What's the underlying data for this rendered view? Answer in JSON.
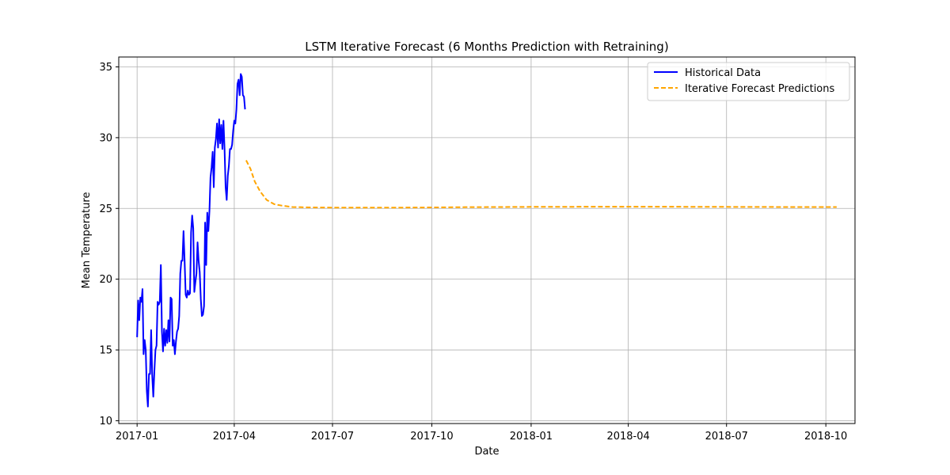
{
  "chart_data": {
    "type": "line",
    "title": "LSTM Iterative Forecast (6 Months Prediction with Retraining)",
    "xlabel": "Date",
    "ylabel": "Mean Temperature",
    "x_axis_type": "date",
    "xlim": [
      "2016-12-15",
      "2018-10-28"
    ],
    "ylim": [
      9.8,
      35.7
    ],
    "grid": true,
    "legend_position": "top-right",
    "x_ticks": [
      "2017-01",
      "2017-04",
      "2017-07",
      "2017-10",
      "2018-01",
      "2018-04",
      "2018-07",
      "2018-10"
    ],
    "y_ticks": [
      10,
      15,
      20,
      25,
      30,
      35
    ],
    "series": [
      {
        "name": "Historical Data",
        "color": "#0000ff",
        "style": "solid",
        "points": [
          [
            "2017-01-01",
            15.9
          ],
          [
            "2017-01-02",
            18.5
          ],
          [
            "2017-01-03",
            17.1
          ],
          [
            "2017-01-04",
            18.7
          ],
          [
            "2017-01-05",
            18.4
          ],
          [
            "2017-01-06",
            19.3
          ],
          [
            "2017-01-07",
            14.7
          ],
          [
            "2017-01-08",
            15.7
          ],
          [
            "2017-01-09",
            15.0
          ],
          [
            "2017-01-10",
            12.1
          ],
          [
            "2017-01-11",
            11.0
          ],
          [
            "2017-01-12",
            13.3
          ],
          [
            "2017-01-13",
            13.3
          ],
          [
            "2017-01-14",
            16.4
          ],
          [
            "2017-01-15",
            13.2
          ],
          [
            "2017-01-16",
            11.7
          ],
          [
            "2017-01-17",
            13.5
          ],
          [
            "2017-01-18",
            15.0
          ],
          [
            "2017-01-19",
            15.3
          ],
          [
            "2017-01-20",
            18.4
          ],
          [
            "2017-01-21",
            18.2
          ],
          [
            "2017-01-22",
            18.4
          ],
          [
            "2017-01-23",
            21.0
          ],
          [
            "2017-01-24",
            16.3
          ],
          [
            "2017-01-25",
            14.9
          ],
          [
            "2017-01-26",
            16.5
          ],
          [
            "2017-01-27",
            15.3
          ],
          [
            "2017-01-28",
            16.4
          ],
          [
            "2017-01-29",
            15.5
          ],
          [
            "2017-01-30",
            17.1
          ],
          [
            "2017-01-31",
            15.6
          ],
          [
            "2017-02-01",
            18.7
          ],
          [
            "2017-02-02",
            18.6
          ],
          [
            "2017-02-03",
            15.3
          ],
          [
            "2017-02-04",
            15.7
          ],
          [
            "2017-02-05",
            14.7
          ],
          [
            "2017-02-06",
            15.6
          ],
          [
            "2017-02-07",
            16.3
          ],
          [
            "2017-02-08",
            16.5
          ],
          [
            "2017-02-09",
            17.4
          ],
          [
            "2017-02-10",
            20.4
          ],
          [
            "2017-02-11",
            21.3
          ],
          [
            "2017-02-12",
            21.3
          ],
          [
            "2017-02-13",
            23.4
          ],
          [
            "2017-02-14",
            21.3
          ],
          [
            "2017-02-15",
            18.9
          ],
          [
            "2017-02-16",
            18.7
          ],
          [
            "2017-02-17",
            19.2
          ],
          [
            "2017-02-18",
            18.9
          ],
          [
            "2017-02-19",
            19.0
          ],
          [
            "2017-02-20",
            23.3
          ],
          [
            "2017-02-21",
            24.5
          ],
          [
            "2017-02-22",
            23.6
          ],
          [
            "2017-02-23",
            19.1
          ],
          [
            "2017-02-24",
            19.8
          ],
          [
            "2017-02-25",
            20.4
          ],
          [
            "2017-02-26",
            22.6
          ],
          [
            "2017-02-27",
            21.3
          ],
          [
            "2017-02-28",
            20.5
          ],
          [
            "2017-03-01",
            18.6
          ],
          [
            "2017-03-02",
            17.4
          ],
          [
            "2017-03-03",
            17.5
          ],
          [
            "2017-03-04",
            18.1
          ],
          [
            "2017-03-05",
            24.0
          ],
          [
            "2017-03-06",
            21.0
          ],
          [
            "2017-03-07",
            24.7
          ],
          [
            "2017-03-08",
            23.4
          ],
          [
            "2017-03-09",
            24.8
          ],
          [
            "2017-03-10",
            27.2
          ],
          [
            "2017-03-11",
            27.9
          ],
          [
            "2017-03-12",
            29.0
          ],
          [
            "2017-03-13",
            26.5
          ],
          [
            "2017-03-14",
            29.3
          ],
          [
            "2017-03-15",
            29.9
          ],
          [
            "2017-03-16",
            31.0
          ],
          [
            "2017-03-17",
            29.3
          ],
          [
            "2017-03-18",
            31.3
          ],
          [
            "2017-03-19",
            29.6
          ],
          [
            "2017-03-20",
            30.9
          ],
          [
            "2017-03-21",
            29.2
          ],
          [
            "2017-03-22",
            31.2
          ],
          [
            "2017-03-23",
            29.2
          ],
          [
            "2017-03-24",
            26.5
          ],
          [
            "2017-03-25",
            25.6
          ],
          [
            "2017-03-26",
            27.3
          ],
          [
            "2017-03-27",
            28.0
          ],
          [
            "2017-03-28",
            29.2
          ],
          [
            "2017-03-29",
            29.2
          ],
          [
            "2017-03-30",
            29.5
          ],
          [
            "2017-03-31",
            30.5
          ],
          [
            "2017-04-01",
            31.2
          ],
          [
            "2017-04-02",
            31.0
          ],
          [
            "2017-04-03",
            32.0
          ],
          [
            "2017-04-04",
            33.8
          ],
          [
            "2017-04-05",
            34.1
          ],
          [
            "2017-04-06",
            33.0
          ],
          [
            "2017-04-07",
            34.5
          ],
          [
            "2017-04-08",
            34.3
          ],
          [
            "2017-04-09",
            33.0
          ],
          [
            "2017-04-10",
            32.9
          ],
          [
            "2017-04-11",
            32.0
          ]
        ]
      },
      {
        "name": "Iterative Forecast Predictions",
        "color": "#ffa500",
        "style": "dashed",
        "points": [
          [
            "2017-04-12",
            28.4
          ],
          [
            "2017-04-16",
            27.8
          ],
          [
            "2017-04-20",
            26.9
          ],
          [
            "2017-04-25",
            26.2
          ],
          [
            "2017-05-01",
            25.6
          ],
          [
            "2017-05-08",
            25.3
          ],
          [
            "2017-05-15",
            25.2
          ],
          [
            "2017-05-25",
            25.1
          ],
          [
            "2017-06-10",
            25.07
          ],
          [
            "2017-07-01",
            25.06
          ],
          [
            "2017-08-01",
            25.06
          ],
          [
            "2017-09-01",
            25.06
          ],
          [
            "2017-10-01",
            25.07
          ],
          [
            "2017-11-01",
            25.09
          ],
          [
            "2017-12-01",
            25.1
          ],
          [
            "2018-01-01",
            25.11
          ],
          [
            "2018-03-01",
            25.12
          ],
          [
            "2018-05-01",
            25.12
          ],
          [
            "2018-07-01",
            25.11
          ],
          [
            "2018-09-01",
            25.1
          ],
          [
            "2018-10-11",
            25.1
          ]
        ]
      }
    ]
  }
}
